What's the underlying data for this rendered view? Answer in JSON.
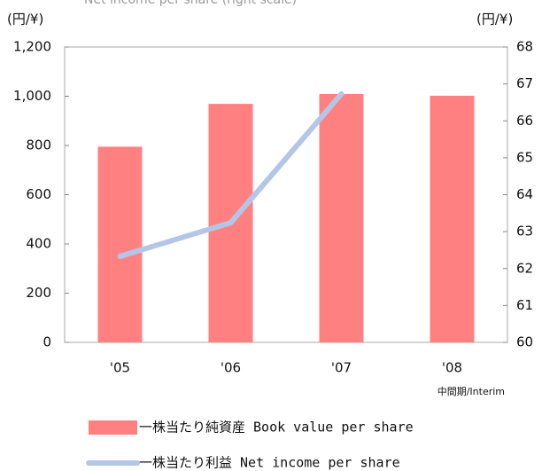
{
  "chart_data": {
    "type": "bar_line",
    "subtitle": "Net income per share (right scale)",
    "y_unit": "(円/¥)",
    "y2_unit": "(円/¥)",
    "note": "中間期/Interim",
    "categories": [
      "'05",
      "'06",
      "'07",
      "'08"
    ],
    "series": [
      {
        "name": "一株当たり純資産 Book value per share",
        "type": "bar",
        "color": "#ff8080",
        "values": [
          795,
          969,
          1009,
          1002
        ]
      },
      {
        "name": "一株当たり利益 Net income per share",
        "type": "line",
        "color": "#b4c6e7",
        "axis": "y2",
        "values": [
          62.33,
          63.24,
          66.73,
          null
        ]
      }
    ],
    "ylim": [
      0,
      1200
    ],
    "yticks": [
      0,
      200,
      400,
      600,
      800,
      {
        "value": 1000,
        "label": "1,000"
      },
      {
        "value": 1200,
        "label": "1,200"
      }
    ],
    "y2lim": [
      60,
      68
    ],
    "y2ticks": [
      60,
      61,
      62,
      63,
      64,
      65,
      66,
      67,
      68
    ],
    "grid": false
  }
}
